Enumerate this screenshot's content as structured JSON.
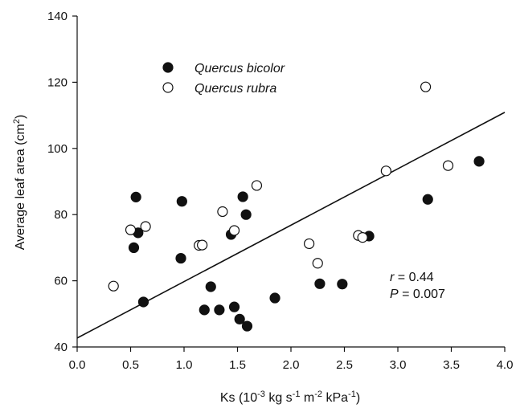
{
  "chart_data": {
    "type": "scatter",
    "title": "",
    "xlabel": "Ks (10-3 kg s-1 m-2 kPa-1)",
    "ylabel": "Average leaf area (cm2)",
    "xlim": [
      0.0,
      4.0
    ],
    "ylim": [
      40,
      140
    ],
    "x_ticks": [
      "0.0",
      "0.5",
      "1.0",
      "1.5",
      "2.0",
      "2.5",
      "3.0",
      "3.5",
      "4.0"
    ],
    "y_ticks": [
      "40",
      "60",
      "80",
      "100",
      "120",
      "140"
    ],
    "grid": false,
    "legend_position": "top-left",
    "series": [
      {
        "name": "Quercus bicolor",
        "marker": "filled-circle",
        "color": "#111111",
        "points": [
          [
            0.55,
            85.3
          ],
          [
            0.57,
            74.5
          ],
          [
            0.53,
            70.0
          ],
          [
            0.62,
            53.6
          ],
          [
            0.98,
            84.0
          ],
          [
            0.97,
            66.8
          ],
          [
            1.25,
            58.2
          ],
          [
            1.19,
            51.2
          ],
          [
            1.33,
            51.2
          ],
          [
            1.47,
            52.1
          ],
          [
            1.52,
            48.4
          ],
          [
            1.59,
            46.3
          ],
          [
            1.55,
            85.4
          ],
          [
            1.58,
            80.0
          ],
          [
            1.44,
            74.0
          ],
          [
            1.85,
            54.8
          ],
          [
            2.27,
            59.1
          ],
          [
            2.48,
            59.0
          ],
          [
            2.73,
            73.5
          ],
          [
            3.28,
            84.6
          ],
          [
            3.76,
            96.1
          ]
        ]
      },
      {
        "name": "Quercus rubra",
        "marker": "open-circle",
        "color": "#111111",
        "points": [
          [
            0.34,
            58.4
          ],
          [
            0.5,
            75.4
          ],
          [
            0.64,
            76.4
          ],
          [
            1.14,
            70.7
          ],
          [
            1.17,
            70.8
          ],
          [
            1.36,
            80.9
          ],
          [
            1.47,
            75.2
          ],
          [
            1.68,
            88.8
          ],
          [
            2.17,
            71.2
          ],
          [
            2.25,
            65.3
          ],
          [
            2.63,
            73.7
          ],
          [
            2.67,
            73.1
          ],
          [
            2.89,
            93.2
          ],
          [
            3.26,
            118.6
          ],
          [
            3.47,
            94.8
          ]
        ]
      }
    ],
    "regression_line": {
      "x": [
        0.0,
        4.0
      ],
      "y": [
        42.7,
        110.9
      ]
    },
    "annotations": {
      "r_label": "r",
      "r_value": " = 0.44",
      "p_label": "P",
      "p_value": " = 0.007"
    }
  }
}
